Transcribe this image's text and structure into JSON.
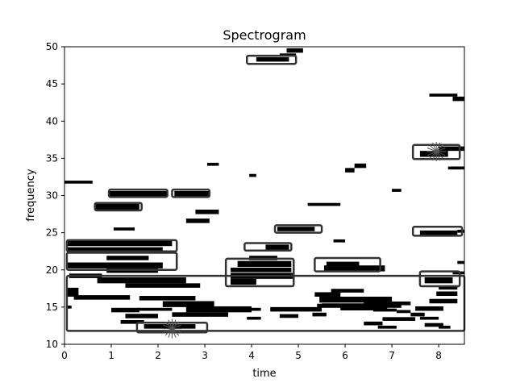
{
  "chart_data": {
    "type": "heatmap",
    "title": "Spectrogram",
    "xlabel": "time",
    "ylabel": "frequency",
    "xlim": [
      0,
      8.55
    ],
    "ylim": [
      10,
      50
    ],
    "xticks": [
      0,
      1,
      2,
      3,
      4,
      5,
      6,
      7,
      8
    ],
    "yticks": [
      10,
      15,
      20,
      25,
      30,
      35,
      40,
      45,
      50
    ],
    "grid": false,
    "colors": {
      "segment": "#000000",
      "box": "#333333",
      "background": "#ffffff",
      "marker": "#555555"
    },
    "segments": [
      [
        0.0,
        0.6,
        31.8,
        0.4
      ],
      [
        0.95,
        2.2,
        30.2,
        0.8
      ],
      [
        2.35,
        3.1,
        30.2,
        0.8
      ],
      [
        0.65,
        1.6,
        28.5,
        0.8
      ],
      [
        3.05,
        3.3,
        34.2,
        0.4
      ],
      [
        2.8,
        3.3,
        27.8,
        0.6
      ],
      [
        2.6,
        3.1,
        26.6,
        0.6
      ],
      [
        1.05,
        1.5,
        25.5,
        0.4
      ],
      [
        0.05,
        2.3,
        23.6,
        0.8
      ],
      [
        0.05,
        2.1,
        22.7,
        0.7
      ],
      [
        0.9,
        1.8,
        21.6,
        0.6
      ],
      [
        0.05,
        2.1,
        20.6,
        0.8
      ],
      [
        0.9,
        2.0,
        19.9,
        0.6
      ],
      [
        0.1,
        0.8,
        19.2,
        0.6
      ],
      [
        0.7,
        2.6,
        18.6,
        0.8
      ],
      [
        1.3,
        2.9,
        17.9,
        0.6
      ],
      [
        0.05,
        0.3,
        17.0,
        1.2
      ],
      [
        0.2,
        1.4,
        16.3,
        0.6
      ],
      [
        1.6,
        2.8,
        16.2,
        0.6
      ],
      [
        2.1,
        3.2,
        15.4,
        0.8
      ],
      [
        0.05,
        0.15,
        15.0,
        0.4
      ],
      [
        1.0,
        1.6,
        14.6,
        0.6
      ],
      [
        1.55,
        2.3,
        14.7,
        0.4
      ],
      [
        2.6,
        4.0,
        14.7,
        0.8
      ],
      [
        1.3,
        2.0,
        13.8,
        0.6
      ],
      [
        2.3,
        3.5,
        14.0,
        0.6
      ],
      [
        1.2,
        1.7,
        13.0,
        0.5
      ],
      [
        1.7,
        2.8,
        12.4,
        0.6
      ],
      [
        3.8,
        4.2,
        14.7,
        0.4
      ],
      [
        4.4,
        5.5,
        14.7,
        0.6
      ],
      [
        5.4,
        5.6,
        15.2,
        0.5
      ],
      [
        3.9,
        4.2,
        13.5,
        0.4
      ],
      [
        4.6,
        5.0,
        13.8,
        0.5
      ],
      [
        5.3,
        5.6,
        14.0,
        0.5
      ],
      [
        3.95,
        4.55,
        21.6,
        0.6
      ],
      [
        3.7,
        4.85,
        20.8,
        0.8
      ],
      [
        3.55,
        4.85,
        20.0,
        0.6
      ],
      [
        3.55,
        4.9,
        19.2,
        0.8
      ],
      [
        3.55,
        4.1,
        18.4,
        0.8
      ],
      [
        4.3,
        4.8,
        23.0,
        0.8
      ],
      [
        4.55,
        5.35,
        25.5,
        0.6
      ],
      [
        5.6,
        6.3,
        20.8,
        0.6
      ],
      [
        5.55,
        6.85,
        20.2,
        0.8
      ],
      [
        5.35,
        5.9,
        16.7,
        0.6
      ],
      [
        5.45,
        7.0,
        16.0,
        0.8
      ],
      [
        5.5,
        7.2,
        15.2,
        0.6
      ],
      [
        5.9,
        6.9,
        14.8,
        0.5
      ],
      [
        5.7,
        6.4,
        17.2,
        0.5
      ],
      [
        6.4,
        7.4,
        15.5,
        0.5
      ],
      [
        6.6,
        7.1,
        14.6,
        0.4
      ],
      [
        7.1,
        7.4,
        14.4,
        0.4
      ],
      [
        6.8,
        7.5,
        13.4,
        0.5
      ],
      [
        6.4,
        6.8,
        12.8,
        0.5
      ],
      [
        6.7,
        7.1,
        12.3,
        0.4
      ],
      [
        7.5,
        8.1,
        14.8,
        0.6
      ],
      [
        7.4,
        7.7,
        14.0,
        0.5
      ],
      [
        7.6,
        8.0,
        13.5,
        0.4
      ],
      [
        7.7,
        8.1,
        12.6,
        0.5
      ],
      [
        8.0,
        8.25,
        12.3,
        0.4
      ],
      [
        7.8,
        8.4,
        15.8,
        0.6
      ],
      [
        7.95,
        8.4,
        16.8,
        0.6
      ],
      [
        8.0,
        8.4,
        17.6,
        0.5
      ],
      [
        7.7,
        8.3,
        18.6,
        0.8
      ],
      [
        8.3,
        8.55,
        19.6,
        0.4
      ],
      [
        8.4,
        8.55,
        21.0,
        0.4
      ],
      [
        7.6,
        8.4,
        25.0,
        0.6
      ],
      [
        8.4,
        8.55,
        25.2,
        0.4
      ],
      [
        5.75,
        6.0,
        23.9,
        0.4
      ],
      [
        5.2,
        5.9,
        28.8,
        0.4
      ],
      [
        6.0,
        6.2,
        33.4,
        0.6
      ],
      [
        6.2,
        6.45,
        34.0,
        0.6
      ],
      [
        7.0,
        7.2,
        30.7,
        0.4
      ],
      [
        7.6,
        8.2,
        35.6,
        0.8
      ],
      [
        8.0,
        8.55,
        36.3,
        0.6
      ],
      [
        8.2,
        8.55,
        33.7,
        0.4
      ],
      [
        7.8,
        8.4,
        43.5,
        0.4
      ],
      [
        8.3,
        8.55,
        43.0,
        0.6
      ],
      [
        3.95,
        4.1,
        32.7,
        0.4
      ],
      [
        4.1,
        4.8,
        48.3,
        0.6
      ],
      [
        4.6,
        4.95,
        48.9,
        0.4
      ],
      [
        4.75,
        5.1,
        49.5,
        0.6
      ]
    ],
    "boxes": [
      [
        0.95,
        2.2,
        29.8,
        30.8
      ],
      [
        2.3,
        3.1,
        29.8,
        30.8
      ],
      [
        0.65,
        1.65,
        28.0,
        29.0
      ],
      [
        0.05,
        2.4,
        22.5,
        24.0
      ],
      [
        0.05,
        2.4,
        20.0,
        22.3
      ],
      [
        3.45,
        4.9,
        17.8,
        21.5
      ],
      [
        3.85,
        4.85,
        22.6,
        23.6
      ],
      [
        4.5,
        5.5,
        25.0,
        26.0
      ],
      [
        5.35,
        6.75,
        19.8,
        21.6
      ],
      [
        3.9,
        4.95,
        47.7,
        48.8
      ],
      [
        7.45,
        8.45,
        34.9,
        36.8
      ],
      [
        7.45,
        8.5,
        24.6,
        25.8
      ],
      [
        7.6,
        8.45,
        17.8,
        19.8
      ],
      [
        1.55,
        3.05,
        11.6,
        12.9
      ],
      [
        0.05,
        8.55,
        11.8,
        19.2
      ]
    ],
    "markers": [
      [
        2.3,
        12.1
      ],
      [
        7.95,
        35.9
      ]
    ]
  }
}
